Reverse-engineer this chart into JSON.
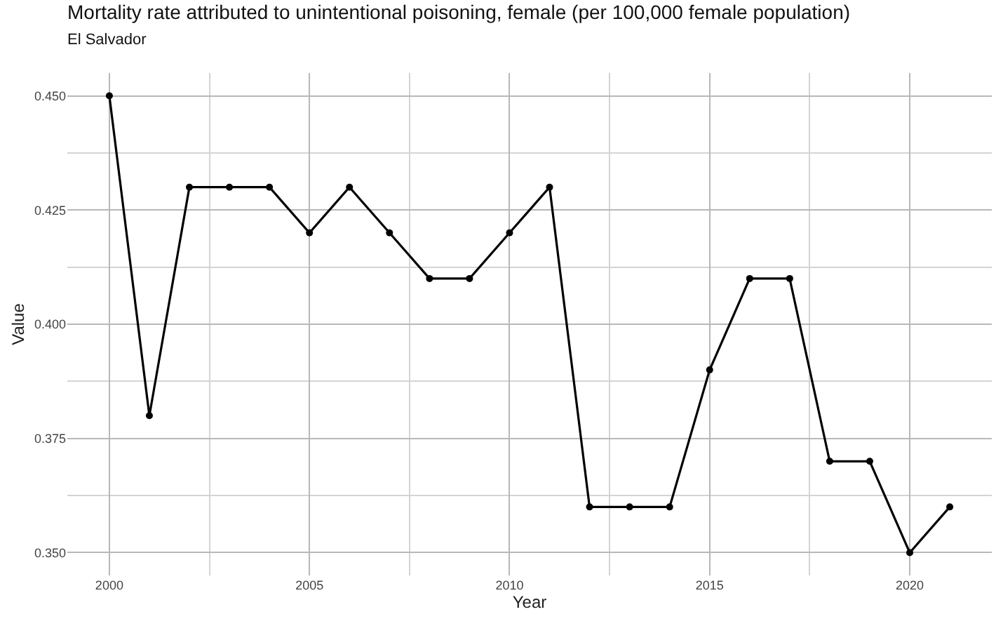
{
  "chart_data": {
    "type": "line",
    "title": "Mortality rate attributed to unintentional poisoning, female (per 100,000 female population)",
    "subtitle": "El Salvador",
    "xlabel": "Year",
    "ylabel": "Value",
    "x": [
      2000,
      2001,
      2002,
      2003,
      2004,
      2005,
      2006,
      2007,
      2008,
      2009,
      2010,
      2011,
      2012,
      2013,
      2014,
      2015,
      2016,
      2017,
      2018,
      2019,
      2020,
      2021
    ],
    "series": [
      {
        "color": "#000000",
        "values": [
          0.45,
          0.38,
          0.43,
          0.43,
          0.43,
          0.42,
          0.43,
          0.42,
          0.41,
          0.41,
          0.42,
          0.43,
          0.36,
          0.36,
          0.36,
          0.39,
          0.41,
          0.41,
          0.37,
          0.37,
          0.35,
          0.36
        ]
      }
    ],
    "xlim": [
      1998.95,
      2022.05
    ],
    "xticks": [
      2000,
      2005,
      2010,
      2015,
      2020
    ],
    "ylim": [
      0.345,
      0.455
    ],
    "yticks": [
      {
        "value": 0.35,
        "label": "0.350"
      },
      {
        "value": 0.375,
        "label": "0.375"
      },
      {
        "value": 0.4,
        "label": "0.400"
      },
      {
        "value": 0.425,
        "label": "0.425"
      },
      {
        "value": 0.45,
        "label": "0.450"
      }
    ],
    "grid": true,
    "marker": "circle",
    "line_style": "solid"
  }
}
